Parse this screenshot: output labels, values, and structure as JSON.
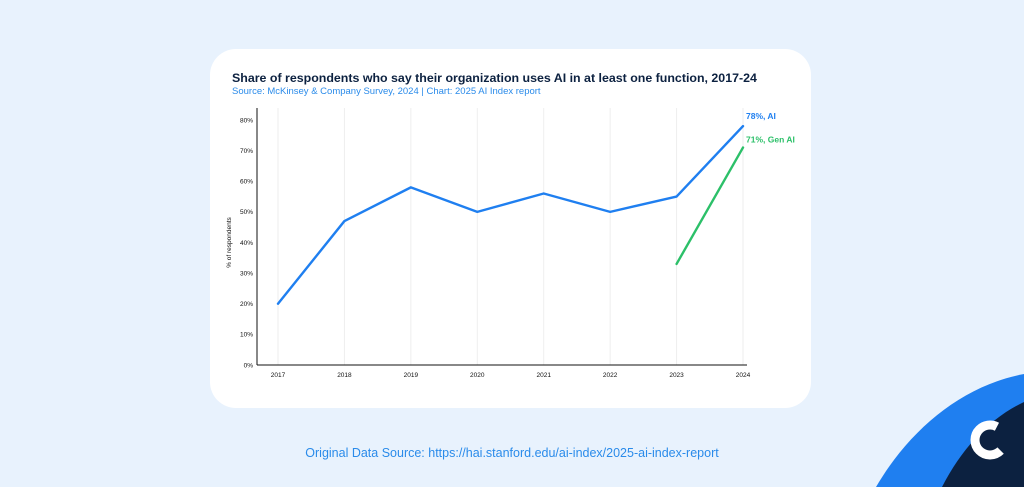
{
  "page": {
    "background": "#e8f2fd",
    "footer": "Original Data Source: https://hai.stanford.edu/ai-index/2025-ai-index-report",
    "logo_icon": "brand-c-logo-icon"
  },
  "chart_data": {
    "type": "line",
    "title": "Share of respondents who say their organization uses AI in at least one function, 2017-24",
    "subtitle": "Source: McKinsey & Company Survey, 2024 | Chart: 2025 AI Index report",
    "xlabel": "",
    "ylabel": "% of respondents",
    "x": [
      2017,
      2018,
      2019,
      2020,
      2021,
      2022,
      2023,
      2024
    ],
    "ylim": [
      0,
      80
    ],
    "yticks": [
      "0%",
      "10%",
      "20%",
      "30%",
      "40%",
      "50%",
      "60%",
      "70%",
      "80%"
    ],
    "grid": "vertical",
    "series": [
      {
        "name": "AI",
        "color": "#1f7ff0",
        "values": [
          20,
          47,
          58,
          50,
          56,
          50,
          55,
          78
        ],
        "end_label": "78%, AI"
      },
      {
        "name": "Gen AI",
        "color": "#2cc069",
        "values": [
          null,
          null,
          null,
          null,
          null,
          null,
          33,
          71
        ],
        "end_label": "71%, Gen AI"
      }
    ]
  }
}
